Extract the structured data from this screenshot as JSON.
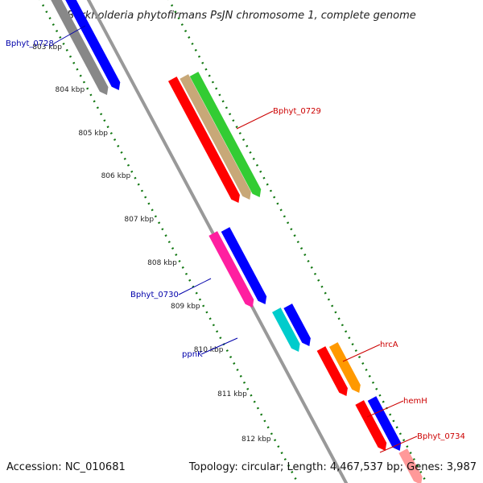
{
  "title": "Burkholderia phytofirmans PsJN chromosome 1, complete genome",
  "ticks": [
    {
      "label": "803 kbp"
    },
    {
      "label": "804 kbp"
    },
    {
      "label": "805 kbp"
    },
    {
      "label": "806 kbp"
    },
    {
      "label": "807 kbp"
    },
    {
      "label": "808 kbp"
    },
    {
      "label": "809 kbp"
    },
    {
      "label": "810 kbp"
    },
    {
      "label": "811 kbp"
    },
    {
      "label": "812 kbp"
    }
  ],
  "gene_labels": [
    {
      "name": "Bphyt_0728",
      "color": "#0000aa"
    },
    {
      "name": "Bphyt_0729",
      "color": "#cc0000"
    },
    {
      "name": "Bphyt_0730",
      "color": "#0000aa"
    },
    {
      "name": "ppnK",
      "color": "#0000aa"
    },
    {
      "name": "hrcA",
      "color": "#cc0000"
    },
    {
      "name": "hemH",
      "color": "#cc0000"
    },
    {
      "name": "Bphyt_0734",
      "color": "#cc0000"
    }
  ],
  "feature_colors": {
    "backbone": "#999999",
    "red": "#ff0000",
    "blue": "#0000ff",
    "green": "#33cc33",
    "tan": "#c8a878",
    "magenta": "#ff1fa0",
    "cyan": "#00cccc",
    "orange": "#ff9900",
    "pink": "#ff9999",
    "gray": "#888888",
    "gc_dots": "#117711"
  },
  "footer": {
    "accession": "Accession: NC_010681",
    "topology": "Topology: circular; Length: 4,467,537 bp; Genes: 3,987"
  }
}
